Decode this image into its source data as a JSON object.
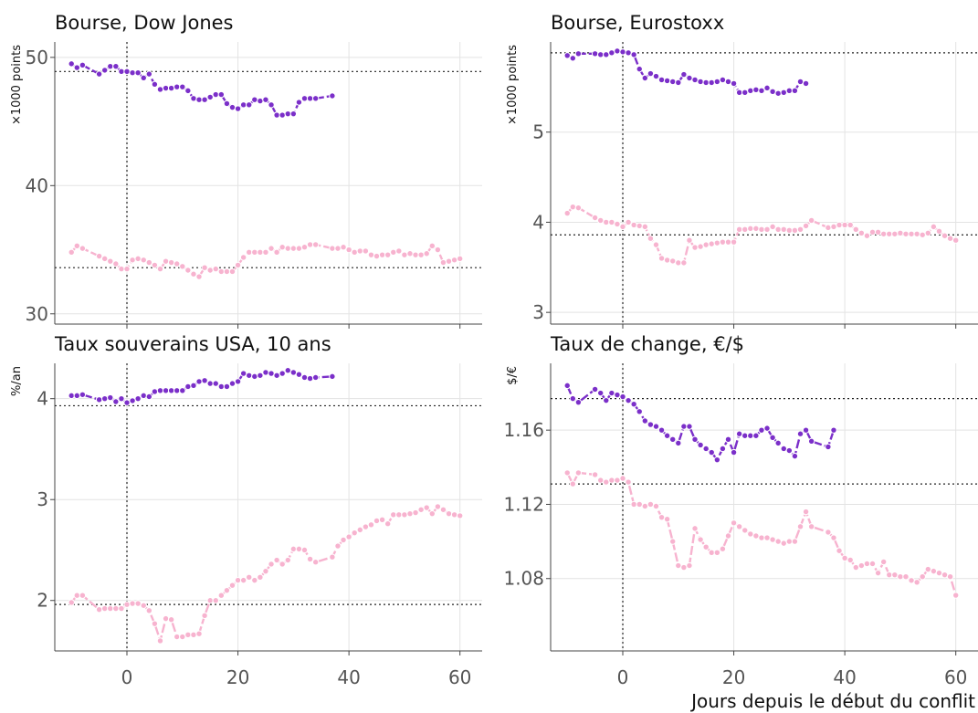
{
  "figure": {
    "xlabel": "Jours depuis le début du conflit"
  },
  "colors": {
    "series_a": "#7b2fc9",
    "series_b": "#f7b3cf",
    "grid": "#e3e3e3",
    "ref": "#222222",
    "axis": "#444444"
  },
  "chart_data": [
    {
      "type": "line",
      "title": "Bourse, Dow Jones",
      "ylabel": "×1000 points",
      "xlim": [
        -13,
        64
      ],
      "ylim": [
        29.2,
        51.2
      ],
      "yticks": [
        30,
        40,
        50
      ],
      "yticklabels": [
        "30",
        "40",
        "50"
      ],
      "xticks": [
        0,
        20,
        40,
        60
      ],
      "xticklabels": [
        "",
        "",
        "",
        ""
      ],
      "grid": true,
      "vline_x": 0,
      "hlines": [
        48.9,
        33.6
      ],
      "series": [
        {
          "x": [
            -10,
            -9,
            -8,
            -5,
            -4,
            -3,
            -2,
            -1,
            0,
            1,
            2,
            3,
            4,
            5,
            6,
            7,
            8,
            9,
            10,
            11,
            12,
            13,
            14,
            15,
            16,
            17,
            18,
            19,
            20,
            21,
            22,
            23,
            24,
            25,
            26,
            27,
            28,
            29,
            30,
            31,
            32,
            33,
            34,
            37
          ],
          "y": [
            49.5,
            49.2,
            49.4,
            48.7,
            49.0,
            49.3,
            49.3,
            48.9,
            48.9,
            48.8,
            48.8,
            48.4,
            48.7,
            47.9,
            47.5,
            47.6,
            47.6,
            47.7,
            47.7,
            47.4,
            46.8,
            46.7,
            46.7,
            46.9,
            47.1,
            47.1,
            46.4,
            46.1,
            46.0,
            46.3,
            46.3,
            46.7,
            46.6,
            46.7,
            46.3,
            45.5,
            45.5,
            45.6,
            45.6,
            46.5,
            46.8,
            46.8,
            46.8,
            47.0
          ]
        },
        {
          "x": [
            -10,
            -9,
            -8,
            -5,
            -4,
            -3,
            -2,
            -1,
            0,
            1,
            2,
            3,
            4,
            5,
            6,
            7,
            8,
            9,
            10,
            11,
            12,
            13,
            14,
            15,
            16,
            17,
            18,
            19,
            20,
            21,
            22,
            23,
            24,
            25,
            26,
            27,
            28,
            29,
            30,
            31,
            32,
            33,
            34,
            37,
            38,
            39,
            40,
            41,
            42,
            43,
            44,
            45,
            46,
            47,
            48,
            49,
            50,
            51,
            52,
            53,
            54,
            55,
            56,
            57,
            58,
            59,
            60
          ],
          "y": [
            34.8,
            35.3,
            35.1,
            34.5,
            34.3,
            34.1,
            33.9,
            33.5,
            33.5,
            34.2,
            34.3,
            34.2,
            34.0,
            33.8,
            33.5,
            34.1,
            34.0,
            33.9,
            33.7,
            33.4,
            33.1,
            32.9,
            33.6,
            33.4,
            33.5,
            33.3,
            33.3,
            33.3,
            33.8,
            34.4,
            34.8,
            34.8,
            34.8,
            34.8,
            35.1,
            34.8,
            35.2,
            35.1,
            35.1,
            35.1,
            35.2,
            35.4,
            35.4,
            35.1,
            35.1,
            35.2,
            35.0,
            34.8,
            34.9,
            34.9,
            34.6,
            34.5,
            34.6,
            34.6,
            34.8,
            34.9,
            34.6,
            34.7,
            34.6,
            34.6,
            34.7,
            35.3,
            35.0,
            34.0,
            34.1,
            34.2,
            34.3
          ]
        }
      ]
    },
    {
      "type": "line",
      "title": "Bourse, Eurostoxx",
      "ylabel": "×1000 points",
      "xlim": [
        -13,
        64
      ],
      "ylim": [
        2.87,
        6.0
      ],
      "yticks": [
        3,
        4,
        5
      ],
      "yticklabels": [
        "3",
        "4",
        "5"
      ],
      "xticks": [
        0,
        20,
        40,
        60
      ],
      "xticklabels": [
        "",
        "",
        "",
        ""
      ],
      "grid": true,
      "vline_x": 0,
      "hlines": [
        5.88,
        3.86
      ],
      "series": [
        {
          "x": [
            -10,
            -9,
            -8,
            -5,
            -4,
            -3,
            -2,
            -1,
            0,
            1,
            2,
            3,
            4,
            5,
            6,
            7,
            8,
            9,
            10,
            11,
            12,
            13,
            14,
            15,
            16,
            17,
            18,
            19,
            20,
            21,
            22,
            23,
            24,
            25,
            26,
            27,
            28,
            29,
            30,
            31,
            32,
            33
          ],
          "y": [
            5.85,
            5.82,
            5.87,
            5.87,
            5.86,
            5.86,
            5.88,
            5.9,
            5.89,
            5.88,
            5.86,
            5.7,
            5.6,
            5.65,
            5.62,
            5.58,
            5.57,
            5.56,
            5.55,
            5.64,
            5.6,
            5.58,
            5.56,
            5.55,
            5.55,
            5.56,
            5.58,
            5.56,
            5.54,
            5.44,
            5.44,
            5.46,
            5.47,
            5.46,
            5.49,
            5.45,
            5.43,
            5.44,
            5.46,
            5.46,
            5.56,
            5.54
          ]
        },
        {
          "x": [
            -10,
            -9,
            -8,
            -5,
            -4,
            -3,
            -2,
            -1,
            0,
            1,
            2,
            3,
            4,
            5,
            6,
            7,
            8,
            9,
            10,
            11,
            12,
            13,
            14,
            15,
            16,
            17,
            18,
            19,
            20,
            21,
            22,
            23,
            24,
            25,
            26,
            27,
            28,
            29,
            30,
            31,
            32,
            33,
            34,
            37,
            38,
            39,
            40,
            41,
            42,
            43,
            44,
            45,
            46,
            47,
            48,
            49,
            50,
            51,
            52,
            53,
            54,
            55,
            56,
            57,
            58,
            59,
            60
          ],
          "y": [
            4.1,
            4.17,
            4.16,
            4.05,
            4.02,
            4.0,
            4.0,
            3.98,
            3.95,
            4.0,
            3.97,
            3.96,
            3.95,
            3.82,
            3.75,
            3.6,
            3.58,
            3.57,
            3.55,
            3.55,
            3.8,
            3.72,
            3.73,
            3.75,
            3.76,
            3.77,
            3.78,
            3.78,
            3.78,
            3.92,
            3.92,
            3.93,
            3.93,
            3.92,
            3.92,
            3.95,
            3.92,
            3.92,
            3.91,
            3.91,
            3.92,
            3.96,
            4.02,
            3.94,
            3.95,
            3.97,
            3.97,
            3.97,
            3.92,
            3.88,
            3.85,
            3.89,
            3.89,
            3.87,
            3.87,
            3.87,
            3.88,
            3.87,
            3.87,
            3.87,
            3.86,
            3.88,
            3.95,
            3.9,
            3.85,
            3.82,
            3.8
          ]
        }
      ]
    },
    {
      "type": "line",
      "title": "Taux souverains USA, 10 ans",
      "ylabel": "%/an",
      "xlim": [
        -13,
        64
      ],
      "ylim": [
        1.5,
        4.35
      ],
      "yticks": [
        2,
        3,
        4
      ],
      "yticklabels": [
        "2",
        "3",
        "4"
      ],
      "xticks": [
        0,
        20,
        40,
        60
      ],
      "xticklabels": [
        "0",
        "20",
        "40",
        "60"
      ],
      "grid": true,
      "vline_x": 0,
      "hlines": [
        3.93,
        1.96
      ],
      "series": [
        {
          "x": [
            -10,
            -9,
            -8,
            -5,
            -4,
            -3,
            -2,
            -1,
            0,
            1,
            2,
            3,
            4,
            5,
            6,
            7,
            8,
            9,
            10,
            11,
            12,
            13,
            14,
            15,
            16,
            17,
            18,
            19,
            20,
            21,
            22,
            23,
            24,
            25,
            26,
            27,
            28,
            29,
            30,
            31,
            32,
            33,
            34,
            37
          ],
          "y": [
            4.03,
            4.03,
            4.04,
            3.99,
            4.0,
            4.01,
            3.97,
            4.0,
            3.96,
            3.98,
            4.0,
            4.03,
            4.02,
            4.07,
            4.08,
            4.08,
            4.08,
            4.08,
            4.08,
            4.12,
            4.13,
            4.17,
            4.18,
            4.15,
            4.15,
            4.12,
            4.12,
            4.15,
            4.17,
            4.25,
            4.23,
            4.22,
            4.23,
            4.26,
            4.25,
            4.23,
            4.25,
            4.28,
            4.26,
            4.24,
            4.21,
            4.2,
            4.21,
            4.22
          ]
        },
        {
          "x": [
            -10,
            -9,
            -8,
            -5,
            -4,
            -3,
            -2,
            -1,
            0,
            1,
            2,
            3,
            4,
            5,
            6,
            7,
            8,
            9,
            10,
            11,
            12,
            13,
            14,
            15,
            16,
            17,
            18,
            19,
            20,
            21,
            22,
            23,
            24,
            25,
            26,
            27,
            28,
            29,
            30,
            31,
            32,
            33,
            34,
            37,
            38,
            39,
            40,
            41,
            42,
            43,
            44,
            45,
            46,
            47,
            48,
            49,
            50,
            51,
            52,
            53,
            54,
            55,
            56,
            57,
            58,
            59,
            60
          ],
          "y": [
            1.98,
            2.05,
            2.05,
            1.91,
            1.92,
            1.92,
            1.92,
            1.92,
            1.96,
            1.97,
            1.97,
            1.95,
            1.9,
            1.77,
            1.6,
            1.82,
            1.81,
            1.64,
            1.64,
            1.66,
            1.66,
            1.67,
            1.85,
            2.0,
            2.0,
            2.05,
            2.1,
            2.15,
            2.2,
            2.2,
            2.23,
            2.2,
            2.23,
            2.29,
            2.36,
            2.4,
            2.36,
            2.4,
            2.51,
            2.51,
            2.5,
            2.41,
            2.38,
            2.43,
            2.54,
            2.6,
            2.63,
            2.67,
            2.7,
            2.73,
            2.75,
            2.79,
            2.8,
            2.76,
            2.85,
            2.85,
            2.85,
            2.86,
            2.87,
            2.9,
            2.92,
            2.86,
            2.93,
            2.9,
            2.86,
            2.85,
            2.84
          ]
        }
      ]
    },
    {
      "type": "line",
      "title": "Taux de change, €/$",
      "ylabel": "$/€",
      "xlim": [
        -13,
        64
      ],
      "ylim": [
        1.041,
        1.196
      ],
      "yticks": [
        1.08,
        1.12,
        1.16
      ],
      "yticklabels": [
        "1.08",
        "1.12",
        "1.16"
      ],
      "xticks": [
        0,
        20,
        40,
        60
      ],
      "xticklabels": [
        "0",
        "20",
        "40",
        "60"
      ],
      "grid": true,
      "vline_x": 0,
      "hlines": [
        1.177,
        1.131
      ],
      "series": [
        {
          "x": [
            -10,
            -9,
            -8,
            -5,
            -4,
            -3,
            -2,
            -1,
            0,
            1,
            2,
            3,
            4,
            5,
            6,
            7,
            8,
            9,
            10,
            11,
            12,
            13,
            14,
            15,
            16,
            17,
            18,
            19,
            20,
            21,
            22,
            23,
            24,
            25,
            26,
            27,
            28,
            29,
            30,
            31,
            32,
            33,
            34,
            37,
            38
          ],
          "y": [
            1.184,
            1.177,
            1.175,
            1.182,
            1.18,
            1.176,
            1.18,
            1.179,
            1.178,
            1.176,
            1.174,
            1.17,
            1.165,
            1.163,
            1.162,
            1.16,
            1.157,
            1.155,
            1.153,
            1.162,
            1.162,
            1.155,
            1.152,
            1.15,
            1.148,
            1.144,
            1.15,
            1.155,
            1.148,
            1.158,
            1.157,
            1.157,
            1.157,
            1.16,
            1.161,
            1.156,
            1.153,
            1.15,
            1.149,
            1.146,
            1.158,
            1.16,
            1.154,
            1.151,
            1.16
          ]
        },
        {
          "x": [
            -10,
            -9,
            -8,
            -5,
            -4,
            -3,
            -2,
            -1,
            0,
            1,
            2,
            3,
            4,
            5,
            6,
            7,
            8,
            9,
            10,
            11,
            12,
            13,
            14,
            15,
            16,
            17,
            18,
            19,
            20,
            21,
            22,
            23,
            24,
            25,
            26,
            27,
            28,
            29,
            30,
            31,
            32,
            33,
            34,
            37,
            38,
            39,
            40,
            41,
            42,
            43,
            44,
            45,
            46,
            47,
            48,
            49,
            50,
            51,
            52,
            53,
            54,
            55,
            56,
            57,
            58,
            59,
            60
          ],
          "y": [
            1.137,
            1.131,
            1.137,
            1.136,
            1.133,
            1.132,
            1.133,
            1.133,
            1.134,
            1.132,
            1.12,
            1.12,
            1.119,
            1.12,
            1.119,
            1.113,
            1.112,
            1.1,
            1.087,
            1.086,
            1.087,
            1.107,
            1.101,
            1.097,
            1.094,
            1.094,
            1.096,
            1.103,
            1.11,
            1.108,
            1.106,
            1.104,
            1.103,
            1.102,
            1.102,
            1.101,
            1.1,
            1.099,
            1.1,
            1.1,
            1.108,
            1.116,
            1.108,
            1.105,
            1.102,
            1.095,
            1.091,
            1.09,
            1.086,
            1.087,
            1.088,
            1.088,
            1.083,
            1.089,
            1.082,
            1.082,
            1.081,
            1.081,
            1.079,
            1.078,
            1.081,
            1.085,
            1.084,
            1.083,
            1.082,
            1.081,
            1.071
          ]
        }
      ]
    }
  ]
}
